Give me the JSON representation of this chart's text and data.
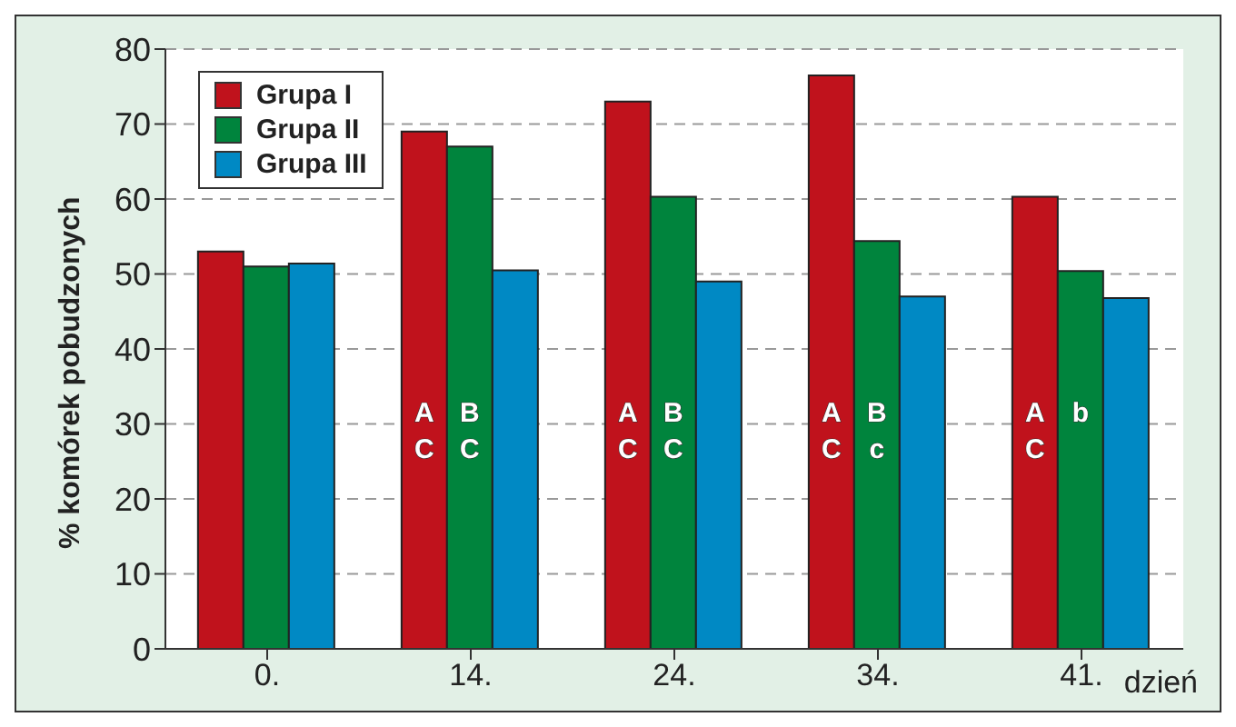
{
  "chart_data": {
    "type": "bar",
    "ylabel": "% komórek pobudzonych",
    "xlabel": "dzień",
    "categories": [
      "0.",
      "14.",
      "24.",
      "34.",
      "41."
    ],
    "series": [
      {
        "name": "Grupa I",
        "color": "#c0121c",
        "values": [
          53,
          69,
          73,
          76.5,
          60.3
        ],
        "value_labels": [
          null,
          "A\nC",
          "A\nC",
          "A\nC",
          "A\nC"
        ]
      },
      {
        "name": "Grupa II",
        "color": "#00843d",
        "values": [
          51,
          67,
          60.3,
          54.4,
          50.4
        ],
        "value_labels": [
          null,
          "B\nC",
          "B\nC",
          "B\nc",
          "b"
        ]
      },
      {
        "name": "Grupa III",
        "color": "#0089c4",
        "values": [
          51.4,
          50.5,
          49,
          47,
          46.8
        ]
      }
    ],
    "ylim": [
      0,
      80
    ],
    "yticks": [
      0,
      10,
      20,
      30,
      40,
      50,
      60,
      70,
      80
    ],
    "grid": "y",
    "legend": "top left"
  }
}
